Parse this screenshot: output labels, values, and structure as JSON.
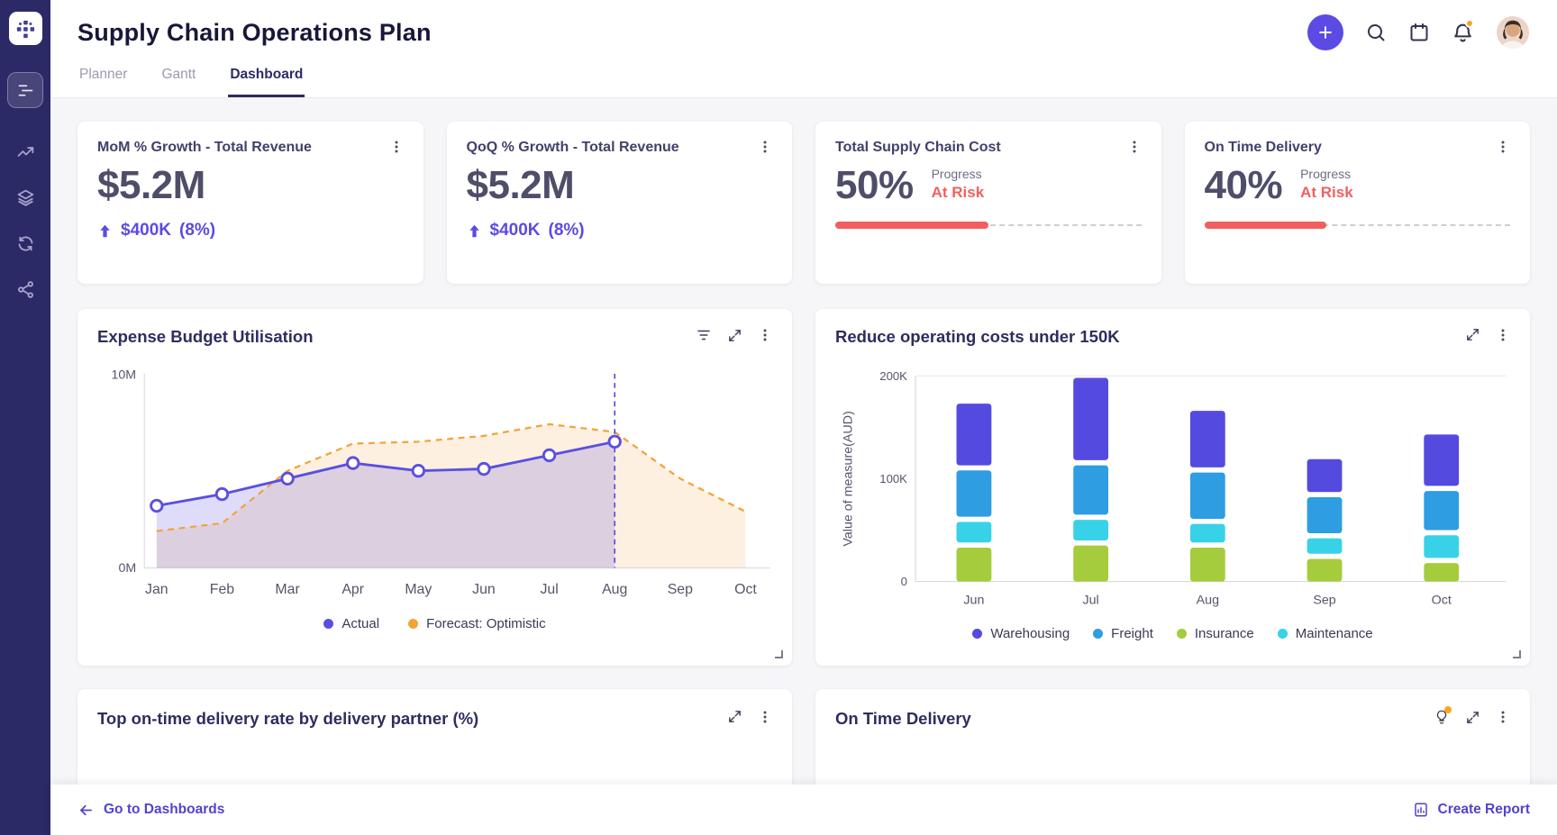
{
  "app": {
    "title": "Supply Chain Operations Plan"
  },
  "tabs": [
    {
      "label": "Planner",
      "active": false
    },
    {
      "label": "Gantt",
      "active": false
    },
    {
      "label": "Dashboard",
      "active": true
    }
  ],
  "kpis": [
    {
      "title": "MoM % Growth - Total Revenue",
      "value": "$5.2M",
      "delta": "$400K",
      "delta_pct": "(8%)"
    },
    {
      "title": "QoQ % Growth - Total Revenue",
      "value": "$5.2M",
      "delta": "$400K",
      "delta_pct": "(8%)"
    },
    {
      "title": "Total Supply Chain Cost",
      "value": "50%",
      "progress_label": "Progress",
      "status": "At Risk",
      "progress_pct": 50,
      "status_color": "#f15f5f"
    },
    {
      "title": "On Time Delivery",
      "value": "40%",
      "progress_label": "Progress",
      "status": "At Risk",
      "progress_pct": 40,
      "status_color": "#f15f5f"
    }
  ],
  "panels": {
    "delivery_partners": {
      "title": "Top on-time delivery rate by delivery partner (%)"
    },
    "on_time": {
      "title": "On Time Delivery"
    }
  },
  "footer": {
    "back_label": "Go to Dashboards",
    "report_label": "Create Report"
  },
  "chart_data": [
    {
      "type": "area",
      "title": "Expense Budget Utilisation",
      "x": [
        "Jan",
        "Feb",
        "Mar",
        "Apr",
        "May",
        "Jun",
        "Jul",
        "Aug",
        "Sep",
        "Oct"
      ],
      "ylim": [
        0,
        10
      ],
      "yticks": [
        0,
        10
      ],
      "ytick_labels": [
        "0M",
        "10M"
      ],
      "unit": "M",
      "marker_index": 7,
      "legend_position": "bottom",
      "series": [
        {
          "name": "Actual",
          "color": "#5b4fe0",
          "style": "solid",
          "markers": true,
          "values": [
            3.2,
            3.8,
            4.6,
            5.4,
            5.0,
            5.1,
            5.8,
            6.5
          ]
        },
        {
          "name": "Forecast: Optimistic",
          "color": "#f2a43c",
          "style": "dashed",
          "markers": false,
          "values": [
            1.9,
            2.3,
            5.0,
            6.4,
            6.5,
            6.8,
            7.4,
            7.0,
            4.6,
            2.9
          ]
        }
      ]
    },
    {
      "type": "stacked_bar",
      "title": "Reduce operating costs under 150K",
      "categories": [
        "Jun",
        "Jul",
        "Aug",
        "Sep",
        "Oct"
      ],
      "ylabel": "Value of measure(AUD)",
      "ylim": [
        0,
        200
      ],
      "yticks": [
        0,
        100,
        200
      ],
      "ytick_labels": [
        "0",
        "100K",
        "200K"
      ],
      "unit": "K AUD",
      "legend_position": "bottom",
      "stack_bottom_to_top": [
        "Insurance",
        "Maintenance",
        "Freight",
        "Warehousing"
      ],
      "series": [
        {
          "name": "Warehousing",
          "color": "#554ae0",
          "values": [
            60,
            80,
            55,
            32,
            50
          ]
        },
        {
          "name": "Freight",
          "color": "#2f9de2",
          "values": [
            45,
            48,
            45,
            35,
            38
          ]
        },
        {
          "name": "Insurance",
          "color": "#a5cc3d",
          "values": [
            33,
            35,
            33,
            22,
            18
          ]
        },
        {
          "name": "Maintenance",
          "color": "#38d2e8",
          "values": [
            20,
            20,
            18,
            15,
            22
          ]
        }
      ]
    }
  ]
}
